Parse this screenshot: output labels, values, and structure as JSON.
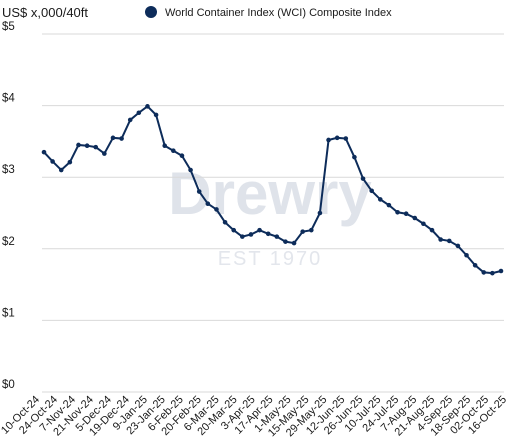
{
  "chart_data": {
    "type": "line",
    "title": "",
    "ylabel": "US$ x,000/40ft",
    "xlabel": "",
    "legend": {
      "placement": "top",
      "entries": [
        "World Container Index (WCI) Composite Index"
      ]
    },
    "watermark": {
      "brand": "Drewry",
      "subtitle": "EST 1970"
    },
    "ylim": [
      0,
      5
    ],
    "yticks": [
      "$0",
      "$1",
      "$2",
      "$3",
      "$4",
      "$5"
    ],
    "ytick_values": [
      0,
      1,
      2,
      3,
      4,
      5
    ],
    "grid": true,
    "x_labels": [
      "10-Oct-24",
      "24-Oct-24",
      "7-Nov-24",
      "21-Nov-24",
      "5-Dec-24",
      "19-Dec-24",
      "9-Jan-25",
      "23-Jan-25",
      "6-Feb-25",
      "20-Feb-25",
      "6-Mar-25",
      "20-Mar-25",
      "3-Apr-25",
      "17-Apr-25",
      "1-May-25",
      "15-May-25",
      "29-May-25",
      "12-Jun-25",
      "26-Jun-25",
      "10-Jul-25",
      "24-Jul-25",
      "7-Aug-25",
      "21-Aug-25",
      "4-Sep-25",
      "18-Sep-25",
      "02-Oct-25",
      "16-Oct-25"
    ],
    "series": [
      {
        "name": "World Container Index (WCI) Composite Index",
        "color": "#0d2c5a",
        "values": [
          3.35,
          3.22,
          3.1,
          3.21,
          3.45,
          3.44,
          3.42,
          3.33,
          3.55,
          3.54,
          3.8,
          3.9,
          3.99,
          3.87,
          3.44,
          3.37,
          3.3,
          3.1,
          2.8,
          2.63,
          2.55,
          2.37,
          2.26,
          2.17,
          2.2,
          2.26,
          2.21,
          2.17,
          2.1,
          2.08,
          2.24,
          2.26,
          2.5,
          3.52,
          3.55,
          3.54,
          3.28,
          2.98,
          2.81,
          2.69,
          2.61,
          2.51,
          2.49,
          2.43,
          2.35,
          2.26,
          2.13,
          2.11,
          2.04,
          1.91,
          1.77,
          1.67,
          1.66,
          1.69
        ]
      }
    ]
  }
}
